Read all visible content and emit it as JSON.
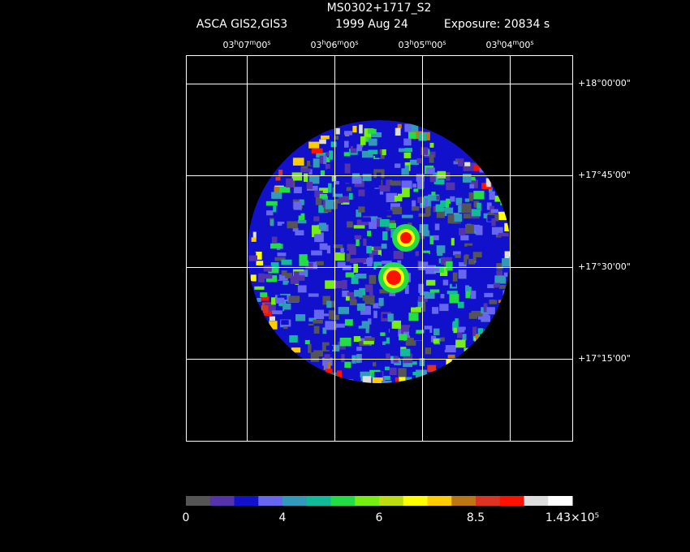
{
  "title": "MS0302+1717_S2",
  "instrument": "ASCA GIS2,GIS3",
  "date": "1999 Aug 24",
  "exposure": "Exposure: 20834 s",
  "ra_labels": [
    "03h07m00s",
    "03h06m00s",
    "03h05m00s",
    "03h04m00s"
  ],
  "dec_labels": [
    "+18°00'00\"",
    "+17°45'00\"",
    "+17°30'00\"",
    "+17°15'00\""
  ],
  "colorbar": {
    "colors": [
      "#555555",
      "#5533aa",
      "#1111cc",
      "#6666ee",
      "#3399bb",
      "#11bb99",
      "#22dd44",
      "#77ee11",
      "#bbdd11",
      "#ffff00",
      "#ffcc00",
      "#bb7711",
      "#dd3322",
      "#ff1100",
      "#dddddd",
      "#ffffff"
    ],
    "labels": [
      "0",
      "4",
      "6",
      "8.5",
      "1.43×10⁵"
    ]
  }
}
